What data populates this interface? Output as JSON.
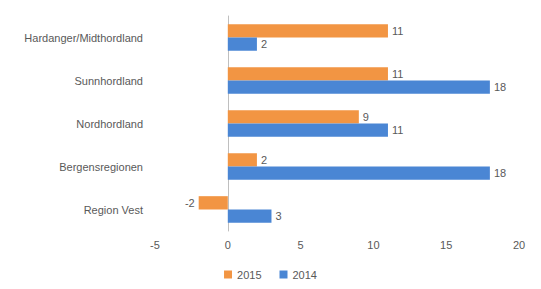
{
  "chart_data": {
    "type": "bar",
    "orientation": "horizontal",
    "categories": [
      "Hardanger/Midthordland",
      "Sunnhordland",
      "Nordhordland",
      "Bergensregionen",
      "Region Vest"
    ],
    "series": [
      {
        "name": "2015",
        "color": "#f29543",
        "values": [
          11,
          11,
          9,
          2,
          -2
        ]
      },
      {
        "name": "2014",
        "color": "#4a86d4",
        "values": [
          2,
          18,
          11,
          18,
          3
        ]
      }
    ],
    "xlim": [
      -5,
      20
    ],
    "xticks": [
      -5,
      0,
      5,
      10,
      15,
      20
    ],
    "grid": false,
    "legend": "bottom",
    "data_labels": true
  }
}
